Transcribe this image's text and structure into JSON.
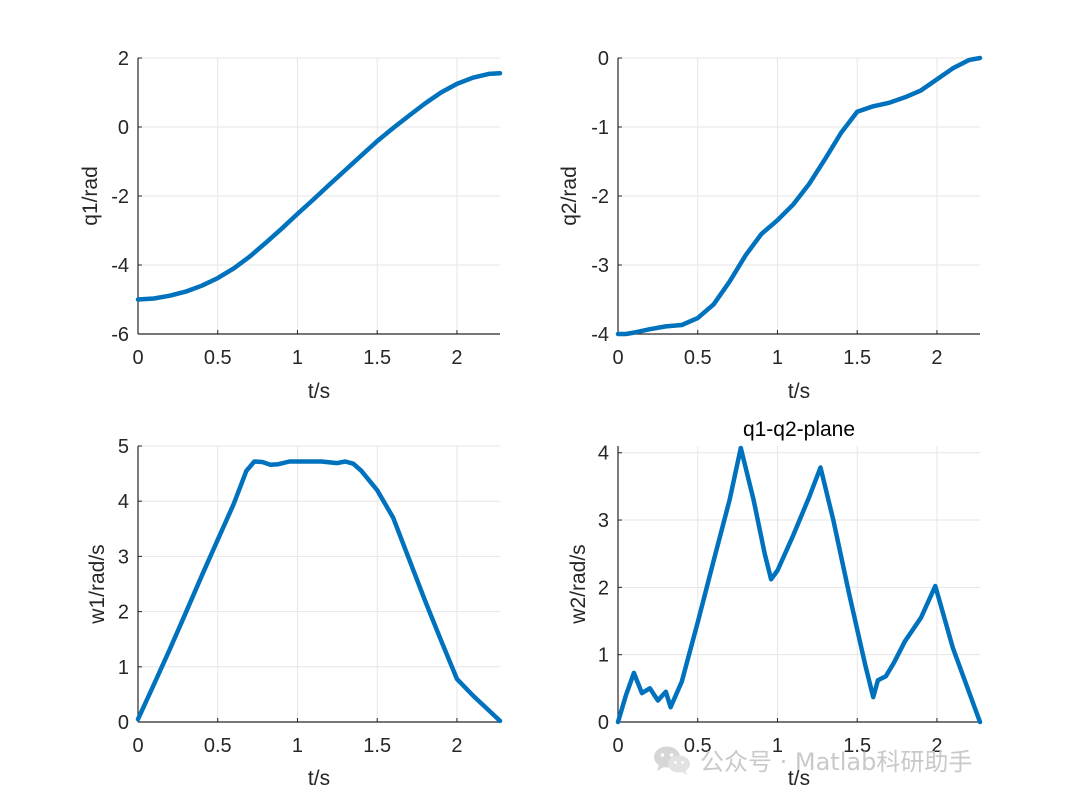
{
  "colors": {
    "line": "#0072BD",
    "grid": "#e6e6e6",
    "axis": "#262626"
  },
  "watermark": {
    "text": "公众号 · Matlab科研助手",
    "icon": "wechat-icon"
  },
  "chart_data": [
    {
      "type": "line",
      "title": "",
      "xlabel": "t/s",
      "ylabel": "q1/rad",
      "xlim": [
        0,
        2.27
      ],
      "ylim": [
        -6,
        2
      ],
      "xticks": [
        0,
        0.5,
        1,
        1.5,
        2
      ],
      "xtick_labels": [
        "0",
        "0.5",
        "1",
        "1.5",
        "2"
      ],
      "yticks": [
        -6,
        -4,
        -2,
        0,
        2
      ],
      "ytick_labels": [
        "-6",
        "-4",
        "-2",
        "0",
        "2"
      ],
      "grid": true,
      "series": [
        {
          "x": [
            0,
            0.1,
            0.2,
            0.3,
            0.4,
            0.5,
            0.6,
            0.7,
            0.8,
            0.9,
            1.0,
            1.1,
            1.2,
            1.3,
            1.4,
            1.5,
            1.6,
            1.7,
            1.8,
            1.9,
            2.0,
            2.1,
            2.2,
            2.27
          ],
          "y": [
            -5.0,
            -4.97,
            -4.89,
            -4.77,
            -4.6,
            -4.38,
            -4.1,
            -3.76,
            -3.36,
            -2.95,
            -2.52,
            -2.1,
            -1.67,
            -1.25,
            -0.83,
            -0.41,
            -0.03,
            0.33,
            0.68,
            1.0,
            1.25,
            1.43,
            1.54,
            1.56
          ]
        }
      ]
    },
    {
      "type": "line",
      "title": "",
      "xlabel": "t/s",
      "ylabel": "q2/rad",
      "xlim": [
        0,
        2.27
      ],
      "ylim": [
        -4,
        0
      ],
      "xticks": [
        0,
        0.5,
        1,
        1.5,
        2
      ],
      "xtick_labels": [
        "0",
        "0.5",
        "1",
        "1.5",
        "2"
      ],
      "yticks": [
        -4,
        -3,
        -2,
        -1,
        0
      ],
      "ytick_labels": [
        "-4",
        "-3",
        "-2",
        "-1",
        "0"
      ],
      "grid": true,
      "series": [
        {
          "x": [
            0,
            0.05,
            0.1,
            0.2,
            0.3,
            0.4,
            0.5,
            0.6,
            0.7,
            0.8,
            0.9,
            1.0,
            1.1,
            1.2,
            1.3,
            1.4,
            1.5,
            1.6,
            1.7,
            1.8,
            1.9,
            2.0,
            2.1,
            2.2,
            2.27
          ],
          "y": [
            -4.0,
            -4.0,
            -3.98,
            -3.93,
            -3.89,
            -3.87,
            -3.77,
            -3.57,
            -3.24,
            -2.86,
            -2.55,
            -2.35,
            -2.12,
            -1.82,
            -1.46,
            -1.08,
            -0.78,
            -0.7,
            -0.65,
            -0.57,
            -0.47,
            -0.31,
            -0.15,
            -0.03,
            0.0
          ]
        }
      ]
    },
    {
      "type": "line",
      "title": "",
      "xlabel": "t/s",
      "ylabel": "w1/rad/s",
      "xlim": [
        0,
        2.27
      ],
      "ylim": [
        0,
        5
      ],
      "xticks": [
        0,
        0.5,
        1,
        1.5,
        2
      ],
      "xtick_labels": [
        "0",
        "0.5",
        "1",
        "1.5",
        "2"
      ],
      "yticks": [
        0,
        1,
        2,
        3,
        4,
        5
      ],
      "ytick_labels": [
        "0",
        "1",
        "2",
        "3",
        "4",
        "5"
      ],
      "grid": true,
      "series": [
        {
          "x": [
            0,
            0.1,
            0.2,
            0.3,
            0.4,
            0.5,
            0.6,
            0.68,
            0.73,
            0.78,
            0.83,
            0.88,
            0.95,
            1.05,
            1.15,
            1.25,
            1.3,
            1.35,
            1.4,
            1.5,
            1.6,
            1.7,
            1.8,
            1.9,
            2.0,
            2.1,
            2.27
          ],
          "y": [
            0.05,
            0.68,
            1.32,
            1.98,
            2.65,
            3.3,
            3.95,
            4.55,
            4.72,
            4.71,
            4.66,
            4.67,
            4.72,
            4.72,
            4.72,
            4.69,
            4.72,
            4.68,
            4.55,
            4.2,
            3.7,
            2.95,
            2.2,
            1.48,
            0.78,
            0.48,
            0.02
          ]
        }
      ]
    },
    {
      "type": "line",
      "title": "q1-q2-plane",
      "xlabel": "t/s",
      "ylabel": "w2/rad/s",
      "xlim": [
        0,
        2.27
      ],
      "ylim": [
        0,
        4.1
      ],
      "xticks": [
        0,
        0.5,
        1,
        1.5,
        2
      ],
      "xtick_labels": [
        "0",
        "0.5",
        "1",
        "1.5",
        "2"
      ],
      "yticks": [
        0,
        1,
        2,
        3,
        4
      ],
      "ytick_labels": [
        "0",
        "1",
        "2",
        "3",
        "4"
      ],
      "grid": true,
      "series": [
        {
          "x": [
            0,
            0.05,
            0.1,
            0.15,
            0.2,
            0.25,
            0.3,
            0.33,
            0.4,
            0.5,
            0.6,
            0.7,
            0.77,
            0.85,
            0.92,
            0.96,
            1.0,
            1.1,
            1.2,
            1.27,
            1.35,
            1.45,
            1.55,
            1.6,
            1.63,
            1.68,
            1.73,
            1.8,
            1.9,
            1.99,
            2.1,
            2.27
          ],
          "y": [
            0.0,
            0.4,
            0.73,
            0.43,
            0.5,
            0.32,
            0.45,
            0.22,
            0.6,
            1.48,
            2.4,
            3.3,
            4.07,
            3.3,
            2.5,
            2.12,
            2.25,
            2.78,
            3.35,
            3.78,
            3.0,
            1.9,
            0.85,
            0.37,
            0.62,
            0.68,
            0.88,
            1.2,
            1.55,
            2.02,
            1.1,
            0.0
          ]
        }
      ]
    }
  ]
}
